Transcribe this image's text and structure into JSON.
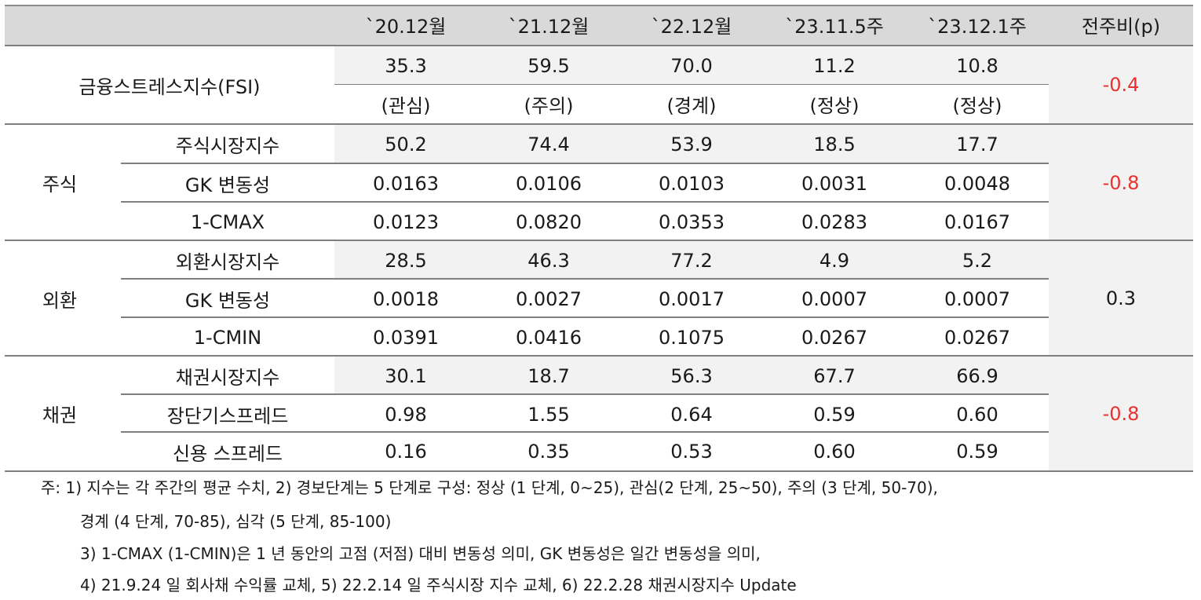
{
  "header": {
    "columns": [
      "`20.12월",
      "`21.12월",
      "`22.12월",
      "`23.11.5주",
      "`23.12.1주",
      "전주비(p)"
    ]
  },
  "fsi": {
    "label": "금융스트레스지수(FSI)",
    "values": [
      "35.3",
      "59.5",
      "70.0",
      "11.2",
      "10.8"
    ],
    "status": [
      "(관심)",
      "(주의)",
      "(경계)",
      "(정상)",
      "(정상)"
    ],
    "change": "-0.4"
  },
  "groups": [
    {
      "label": "주식",
      "change": "-0.8",
      "change_color": "red",
      "rows": [
        {
          "label": "주식시장지수",
          "values": [
            "50.2",
            "74.4",
            "53.9",
            "18.5",
            "17.7"
          ]
        },
        {
          "label": "GK 변동성",
          "values": [
            "0.0163",
            "0.0106",
            "0.0103",
            "0.0031",
            "0.0048"
          ]
        },
        {
          "label": "1-CMAX",
          "values": [
            "0.0123",
            "0.0820",
            "0.0353",
            "0.0283",
            "0.0167"
          ]
        }
      ]
    },
    {
      "label": "외환",
      "change": "0.3",
      "change_color": "black",
      "rows": [
        {
          "label": "외환시장지수",
          "values": [
            "28.5",
            "46.3",
            "77.2",
            "4.9",
            "5.2"
          ]
        },
        {
          "label": "GK 변동성",
          "values": [
            "0.0018",
            "0.0027",
            "0.0017",
            "0.0007",
            "0.0007"
          ]
        },
        {
          "label": "1-CMIN",
          "values": [
            "0.0391",
            "0.0416",
            "0.1075",
            "0.0267",
            "0.0267"
          ]
        }
      ]
    },
    {
      "label": "채권",
      "change": "-0.8",
      "change_color": "red",
      "rows": [
        {
          "label": "채권시장지수",
          "values": [
            "30.1",
            "18.7",
            "56.3",
            "67.7",
            "66.9"
          ]
        },
        {
          "label": "장단기스프레드",
          "values": [
            "0.98",
            "1.55",
            "0.64",
            "0.59",
            "0.60"
          ]
        },
        {
          "label": "신용 스프레드",
          "values": [
            "0.16",
            "0.35",
            "0.53",
            "0.60",
            "0.59"
          ]
        }
      ]
    }
  ],
  "notes": [
    "주: 1) 지수는 각 주간의 평균 수치, 2) 경보단계는 5 단계로 구성: 정상 (1 단계, 0~25), 관심(2 단계, 25~50), 주의 (3 단계, 50-70),",
    "경계 (4 단계, 70-85), 심각 (5 단계, 85-100)",
    "3) 1-CMAX (1-CMIN)은 1 년 동안의 고점 (저점) 대비 변동성 의미, GK 변동성은 일간 변동성을 의미,",
    "4) 21.9.24 일 회사채 수익률 교체, 5) 22.2.14 일 주식시장 지수 교체, 6) 22.2.28 채권시장지수 Update"
  ],
  "colors": {
    "header_bg": "#d9d9d9",
    "shade_bg": "#f2f2f2",
    "negative": "#e8312f",
    "rule": "#7f7f7f"
  }
}
